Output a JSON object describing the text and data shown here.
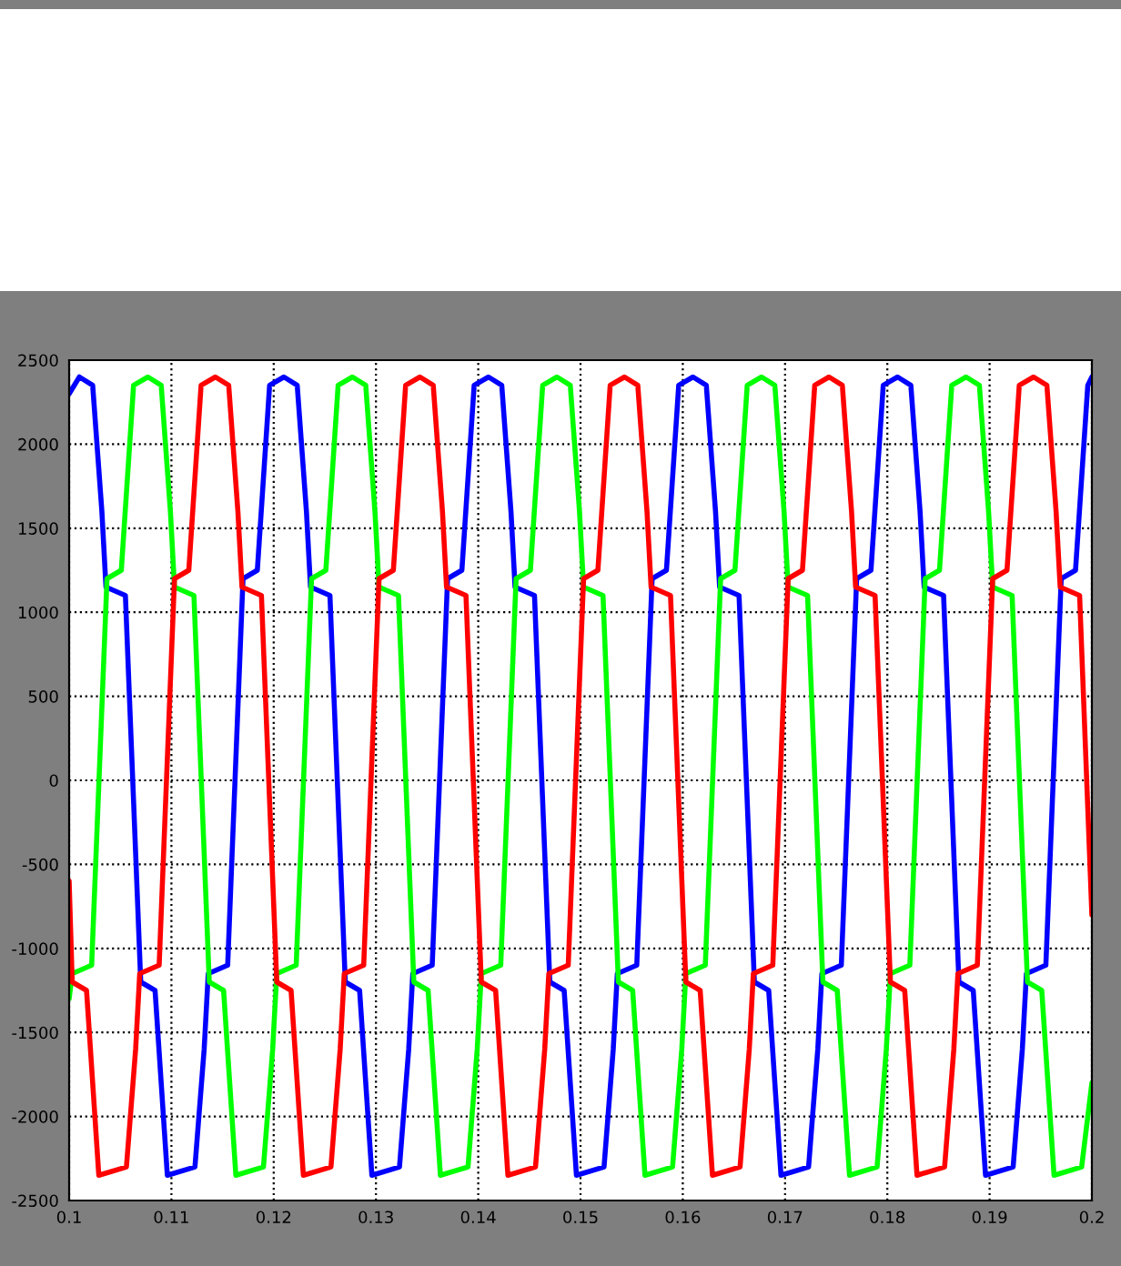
{
  "chart_data": {
    "type": "line",
    "xlim": [
      0.1,
      0.2
    ],
    "ylim": [
      -2500,
      2500
    ],
    "xticks": [
      0.1,
      0.11,
      0.12,
      0.13,
      0.14,
      0.15,
      0.16,
      0.17,
      0.18,
      0.19,
      0.2
    ],
    "yticks": [
      -2500,
      -2000,
      -1500,
      -1000,
      -500,
      0,
      500,
      1000,
      1500,
      2000,
      2500
    ],
    "grid": true,
    "marker": "none",
    "line_style": "solid",
    "series": [
      {
        "color": "#0000ff",
        "x": [
          0.1,
          0.101,
          0.1023,
          0.1032,
          0.1036,
          0.1055,
          0.107,
          0.1084,
          0.1096,
          0.1123,
          0.1132,
          0.1136,
          0.1155,
          0.117,
          0.1184,
          0.1196,
          0.121,
          0.1223,
          0.1232,
          0.1236,
          0.1255,
          0.127,
          0.1284,
          0.1296,
          0.1323,
          0.1332,
          0.1336,
          0.1355,
          0.137,
          0.1384,
          0.1396,
          0.141,
          0.1423,
          0.1432,
          0.1436,
          0.1455,
          0.147,
          0.1484,
          0.1496,
          0.1523,
          0.1532,
          0.1536,
          0.1555,
          0.157,
          0.1584,
          0.1596,
          0.161,
          0.1623,
          0.1632,
          0.1636,
          0.1655,
          0.167,
          0.1684,
          0.1696,
          0.1723,
          0.1732,
          0.1736,
          0.1755,
          0.177,
          0.1784,
          0.1796,
          0.181,
          0.1823,
          0.1832,
          0.1836,
          0.1855,
          0.187,
          0.1884,
          0.1896,
          0.1923,
          0.1932,
          0.1936,
          0.1955,
          0.197,
          0.1984,
          0.1996,
          0.2
        ],
        "values": [
          2300,
          2400,
          2350,
          1600,
          1150,
          1100,
          -1200,
          -1250,
          -2350,
          -2300,
          -1600,
          -1150,
          -1100,
          1200,
          1250,
          2350,
          2400,
          2350,
          1600,
          1150,
          1100,
          -1200,
          -1250,
          -2350,
          -2300,
          -1600,
          -1150,
          -1100,
          1200,
          1250,
          2350,
          2400,
          2350,
          1600,
          1150,
          1100,
          -1200,
          -1250,
          -2350,
          -2300,
          -1600,
          -1150,
          -1100,
          1200,
          1250,
          2350,
          2400,
          2350,
          1600,
          1150,
          1100,
          -1200,
          -1250,
          -2350,
          -2300,
          -1600,
          -1150,
          -1100,
          1200,
          1250,
          2350,
          2400,
          2350,
          1600,
          1150,
          1100,
          -1200,
          -1250,
          -2350,
          -2300,
          -1600,
          -1150,
          -1100,
          1200,
          1250,
          2350,
          2400
        ]
      },
      {
        "color": "#00ff00",
        "x": [
          0.1,
          0.1003,
          0.1022,
          0.1037,
          0.1051,
          0.1063,
          0.1077,
          0.109,
          0.1099,
          0.1103,
          0.1122,
          0.1137,
          0.1151,
          0.1163,
          0.119,
          0.1199,
          0.1203,
          0.1222,
          0.1237,
          0.1251,
          0.1263,
          0.1277,
          0.129,
          0.1299,
          0.1303,
          0.1322,
          0.1337,
          0.1351,
          0.1363,
          0.139,
          0.1399,
          0.1403,
          0.1422,
          0.1437,
          0.1451,
          0.1463,
          0.1477,
          0.149,
          0.1499,
          0.1503,
          0.1522,
          0.1537,
          0.1551,
          0.1563,
          0.159,
          0.1599,
          0.1603,
          0.1622,
          0.1637,
          0.1651,
          0.1663,
          0.1677,
          0.169,
          0.1699,
          0.1703,
          0.1722,
          0.1737,
          0.1751,
          0.1763,
          0.179,
          0.1799,
          0.1803,
          0.1822,
          0.1837,
          0.1851,
          0.1863,
          0.1877,
          0.189,
          0.1899,
          0.1903,
          0.1922,
          0.1937,
          0.1951,
          0.1963,
          0.199,
          0.2
        ],
        "values": [
          -1300,
          -1150,
          -1100,
          1200,
          1250,
          2350,
          2400,
          2350,
          1600,
          1150,
          1100,
          -1200,
          -1250,
          -2350,
          -2300,
          -1600,
          -1150,
          -1100,
          1200,
          1250,
          2350,
          2400,
          2350,
          1600,
          1150,
          1100,
          -1200,
          -1250,
          -2350,
          -2300,
          -1600,
          -1150,
          -1100,
          1200,
          1250,
          2350,
          2400,
          2350,
          1600,
          1150,
          1100,
          -1200,
          -1250,
          -2350,
          -2300,
          -1600,
          -1150,
          -1100,
          1200,
          1250,
          2350,
          2400,
          2350,
          1600,
          1150,
          1100,
          -1200,
          -1250,
          -2350,
          -2300,
          -1600,
          -1150,
          -1100,
          1200,
          1250,
          2350,
          2400,
          2350,
          1600,
          1150,
          1100,
          -1200,
          -1250,
          -2350,
          -2300,
          -1800
        ]
      },
      {
        "color": "#ff0000",
        "x": [
          0.1,
          0.1003,
          0.1017,
          0.1029,
          0.1056,
          0.1065,
          0.1069,
          0.1088,
          0.1103,
          0.1117,
          0.1129,
          0.1143,
          0.1156,
          0.1165,
          0.1169,
          0.1188,
          0.1203,
          0.1217,
          0.1229,
          0.1256,
          0.1265,
          0.1269,
          0.1288,
          0.1303,
          0.1317,
          0.1329,
          0.1343,
          0.1356,
          0.1365,
          0.1369,
          0.1388,
          0.1403,
          0.1417,
          0.1429,
          0.1456,
          0.1465,
          0.1469,
          0.1488,
          0.1503,
          0.1517,
          0.1529,
          0.1543,
          0.1556,
          0.1565,
          0.1569,
          0.1588,
          0.1603,
          0.1617,
          0.1629,
          0.1656,
          0.1665,
          0.1669,
          0.1688,
          0.1703,
          0.1717,
          0.1729,
          0.1743,
          0.1756,
          0.1765,
          0.1769,
          0.1788,
          0.1803,
          0.1817,
          0.1829,
          0.1856,
          0.1865,
          0.1869,
          0.1888,
          0.1903,
          0.1917,
          0.1929,
          0.1943,
          0.1956,
          0.1965,
          0.1969,
          0.1988,
          0.2
        ],
        "values": [
          -600,
          -1200,
          -1250,
          -2350,
          -2300,
          -1600,
          -1150,
          -1100,
          1200,
          1250,
          2350,
          2400,
          2350,
          1600,
          1150,
          1100,
          -1200,
          -1250,
          -2350,
          -2300,
          -1600,
          -1150,
          -1100,
          1200,
          1250,
          2350,
          2400,
          2350,
          1600,
          1150,
          1100,
          -1200,
          -1250,
          -2350,
          -2300,
          -1600,
          -1150,
          -1100,
          1200,
          1250,
          2350,
          2400,
          2350,
          1600,
          1150,
          1100,
          -1200,
          -1250,
          -2350,
          -2300,
          -1600,
          -1150,
          -1100,
          1200,
          1250,
          2350,
          2400,
          2350,
          1600,
          1150,
          1100,
          -1200,
          -1250,
          -2350,
          -2300,
          -1600,
          -1150,
          -1100,
          1200,
          1250,
          2350,
          2400,
          2350,
          1600,
          1150,
          1100,
          -800
        ]
      }
    ]
  }
}
